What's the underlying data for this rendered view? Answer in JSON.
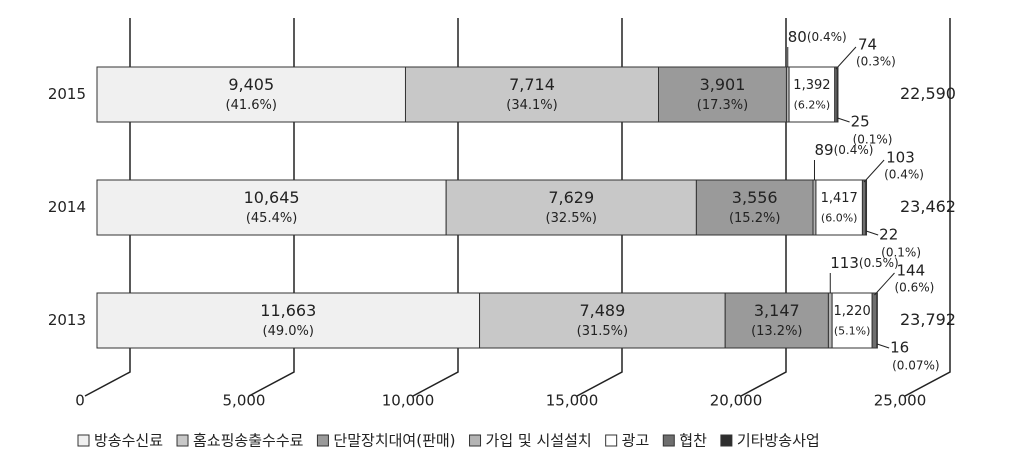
{
  "chart_data": {
    "type": "bar",
    "orientation": "horizontal",
    "stacked": true,
    "categories": [
      "2015",
      "2014",
      "2013"
    ],
    "series": [
      {
        "name": "방송수신료",
        "color": "#f0f0f0",
        "values": [
          9405,
          10645,
          11663
        ],
        "value_labels": [
          "9,405",
          "10,645",
          "11,663"
        ],
        "percent_labels": [
          "(41.6%)",
          "(45.4%)",
          "(49.0%)"
        ]
      },
      {
        "name": "홈쇼핑송출수수료",
        "color": "#c8c8c8",
        "values": [
          7714,
          7629,
          7489
        ],
        "value_labels": [
          "7,714",
          "7,629",
          "7,489"
        ],
        "percent_labels": [
          "(34.1%)",
          "(32.5%)",
          "(31.5%)"
        ]
      },
      {
        "name": "단말장치대여(판매)",
        "color": "#9a9a9a",
        "values": [
          3901,
          3556,
          3147
        ],
        "value_labels": [
          "3,901",
          "3,556",
          "3,147"
        ],
        "percent_labels": [
          "(17.3%)",
          "(15.2%)",
          "(13.2%)"
        ]
      },
      {
        "name": "가입 및 시설설치",
        "color": "#b4b4b4",
        "values": [
          80,
          89,
          113
        ],
        "value_labels": [
          "80",
          "89",
          "113"
        ],
        "percent_labels": [
          "(0.4%)",
          "(0.4%)",
          "(0.5%)"
        ]
      },
      {
        "name": "광고",
        "color": "#ffffff",
        "values": [
          1392,
          1417,
          1220
        ],
        "value_labels": [
          "1,392",
          "1,417",
          "1,220"
        ],
        "percent_labels": [
          "(6.2%)",
          "(6.0%)",
          "(5.1%)"
        ]
      },
      {
        "name": "협찬",
        "color": "#6e6e6e",
        "values": [
          74,
          103,
          144
        ],
        "value_labels": [
          "74",
          "103",
          "144"
        ],
        "percent_labels": [
          "(0.3%)",
          "(0.4%)",
          "(0.6%)"
        ]
      },
      {
        "name": "기타방송사업",
        "color": "#2e2e2e",
        "values": [
          25,
          22,
          16
        ],
        "value_labels": [
          "25",
          "22",
          "16"
        ],
        "percent_labels": [
          "(0.1%)",
          "(0.1%)",
          "(0.07%)"
        ]
      }
    ],
    "totals": [
      {
        "value": 22590,
        "label": "22,590"
      },
      {
        "value": 23462,
        "label": "23,462"
      },
      {
        "value": 23792,
        "label": "23,792"
      }
    ],
    "xlim": [
      0,
      25000
    ],
    "xticks": [
      0,
      {
        "value": 5000,
        "label": "5,000"
      },
      {
        "value": 10000,
        "label": "10,000"
      },
      {
        "value": 15000,
        "label": "15,000"
      },
      {
        "value": 20000,
        "label": "20,000"
      },
      {
        "value": 25000,
        "label": "25,000"
      }
    ],
    "grid": true,
    "legend": "bottom"
  }
}
